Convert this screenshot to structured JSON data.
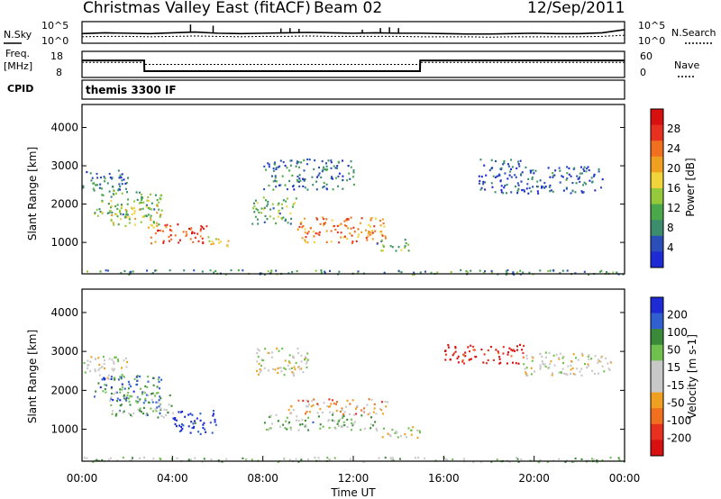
{
  "header": {
    "title": "Christmas Valley East (fitACF)",
    "beam": "Beam 02",
    "date": "12/Sep/2011"
  },
  "noise_panel": {
    "left_label": "N.Sky",
    "right_label": "N.Search",
    "left_ticks": [
      "10^5",
      "10^0"
    ],
    "right_ticks": [
      "10^5",
      "10^0"
    ]
  },
  "freq_panel": {
    "left_label_1": "Freq.",
    "left_label_2": "[MHz]",
    "right_label": "Nave",
    "left_ticks": [
      "18",
      "8"
    ],
    "right_ticks": [
      "60",
      "0"
    ]
  },
  "cpid": {
    "label": "CPID",
    "value": "themis 3300 IF"
  },
  "colors": {
    "power": [
      "#1e2ad6",
      "#2a4fb8",
      "#3c8c6e",
      "#4aa84a",
      "#93c93a",
      "#f0d43a",
      "#f0a020",
      "#f07020",
      "#e83020",
      "#d81010"
    ],
    "velocity": [
      "#1e2ad6",
      "#3060d0",
      "#3a8a3a",
      "#70c050",
      "#c8c8c8",
      "#c8c8c8",
      "#f0a020",
      "#f07020",
      "#e83020",
      "#d81010"
    ]
  },
  "chart_data": [
    {
      "type": "line",
      "name": "noise",
      "x": [
        0,
        1,
        2,
        3,
        4,
        5,
        6,
        7,
        8,
        9,
        10,
        11,
        12,
        13,
        14,
        15,
        16,
        17,
        18,
        19,
        20,
        21,
        22,
        23,
        24
      ],
      "series": [
        {
          "name": "N.Sky",
          "values": [
            2.2,
            2.4,
            2.3,
            2.2,
            2.4,
            2.6,
            2.3,
            2.2,
            2.3,
            2.4,
            2.5,
            2.4,
            2.3,
            2.4,
            2.3,
            2.3,
            2.2,
            2.1,
            2.1,
            2.2,
            2.3,
            2.2,
            2.2,
            2.4,
            3.2
          ]
        },
        {
          "name": "N.Search",
          "values": [
            1.4,
            1.5,
            1.5,
            1.4,
            1.5,
            1.6,
            1.5,
            1.4,
            1.5,
            1.5,
            1.6,
            1.5,
            1.5,
            1.5,
            1.5,
            1.4,
            1.4,
            1.4,
            1.3,
            1.4,
            1.4,
            1.4,
            1.4,
            1.5,
            1.8
          ]
        }
      ],
      "ylim": [
        0,
        5
      ]
    },
    {
      "type": "line",
      "name": "frequency",
      "x": [
        0,
        2.75,
        2.76,
        14.95,
        14.96,
        24
      ],
      "series": [
        {
          "name": "Freq.",
          "values": [
            14.6,
            14.6,
            10.2,
            10.2,
            14.6,
            14.6
          ]
        },
        {
          "name": "Nave",
          "values": [
            35,
            35,
            30,
            30,
            35,
            35
          ]
        }
      ],
      "ylim": [
        8,
        18
      ]
    },
    {
      "type": "heatmap",
      "name": "power",
      "xlabel": "",
      "ylabel": "Slant Range [km]",
      "xlim": [
        0,
        24
      ],
      "ylim": [
        180,
        4600
      ],
      "yticks": [
        1000,
        2000,
        3000,
        4000
      ],
      "colorbar_label": "Power [dB]",
      "colorbar_ticks": [
        "4",
        "8",
        "12",
        "16",
        "20",
        "24",
        "28"
      ],
      "regions": [
        {
          "x": [
            0.0,
            2.0
          ],
          "y": [
            2300,
            2900
          ],
          "value": 8
        },
        {
          "x": [
            0.5,
            3.5
          ],
          "y": [
            1700,
            2400
          ],
          "value": 12
        },
        {
          "x": [
            1.2,
            3.5
          ],
          "y": [
            1400,
            2000
          ],
          "value": 16
        },
        {
          "x": [
            3.0,
            5.5
          ],
          "y": [
            1000,
            1500
          ],
          "value": 24
        },
        {
          "x": [
            5.5,
            6.5
          ],
          "y": [
            900,
            1200
          ],
          "value": 20
        },
        {
          "x": [
            7.5,
            9.5
          ],
          "y": [
            1500,
            2200
          ],
          "value": 12
        },
        {
          "x": [
            9.5,
            13.5
          ],
          "y": [
            1000,
            1700
          ],
          "value": 22
        },
        {
          "x": [
            13.0,
            14.5
          ],
          "y": [
            800,
            1100
          ],
          "value": 12
        },
        {
          "x": [
            8.0,
            12.0
          ],
          "y": [
            2400,
            3200
          ],
          "value": 8
        },
        {
          "x": [
            17.5,
            19.5
          ],
          "y": [
            2300,
            3200
          ],
          "value": 6
        },
        {
          "x": [
            19.5,
            23.0
          ],
          "y": [
            2300,
            3000
          ],
          "value": 6
        },
        {
          "x": [
            0.0,
            24.0
          ],
          "y": [
            180,
            300
          ],
          "value": 10
        }
      ]
    },
    {
      "type": "heatmap",
      "name": "velocity",
      "xlabel": "Time UT",
      "ylabel": "Slant Range [km]",
      "xlim": [
        0,
        24
      ],
      "ylim": [
        180,
        4600
      ],
      "xticks": [
        "00:00",
        "04:00",
        "08:00",
        "12:00",
        "16:00",
        "20:00",
        "00:00"
      ],
      "yticks": [
        1000,
        2000,
        3000,
        4000
      ],
      "colorbar_label": "Velocity [m s-1]",
      "colorbar_ticks": [
        "200",
        "100",
        "50",
        "15",
        "-15",
        "-50",
        "-100",
        "-200"
      ],
      "regions": [
        {
          "x": [
            0.0,
            2.0
          ],
          "y": [
            2300,
            2900
          ],
          "value": 0
        },
        {
          "x": [
            0.5,
            3.5
          ],
          "y": [
            1700,
            2400
          ],
          "value": 120
        },
        {
          "x": [
            1.2,
            4.0
          ],
          "y": [
            1300,
            2000
          ],
          "value": 60
        },
        {
          "x": [
            4.0,
            6.0
          ],
          "y": [
            900,
            1500
          ],
          "value": 180
        },
        {
          "x": [
            7.5,
            10.0
          ],
          "y": [
            2400,
            3100
          ],
          "value": 0
        },
        {
          "x": [
            9.0,
            13.5
          ],
          "y": [
            1400,
            1800
          ],
          "value": -70
        },
        {
          "x": [
            8.0,
            13.0
          ],
          "y": [
            1000,
            1400
          ],
          "value": 60
        },
        {
          "x": [
            13.0,
            15.0
          ],
          "y": [
            800,
            1100
          ],
          "value": 0
        },
        {
          "x": [
            16.0,
            19.5
          ],
          "y": [
            2700,
            3200
          ],
          "value": -180
        },
        {
          "x": [
            19.5,
            23.5
          ],
          "y": [
            2400,
            3000
          ],
          "value": 0
        },
        {
          "x": [
            0.0,
            24.0
          ],
          "y": [
            180,
            300
          ],
          "value": 30
        }
      ]
    }
  ]
}
